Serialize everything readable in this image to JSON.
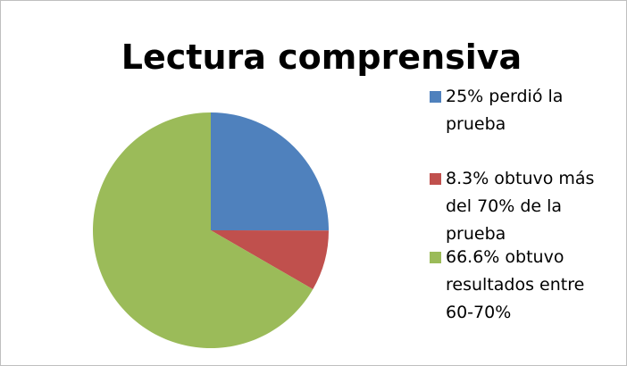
{
  "chart_data": {
    "type": "pie",
    "title": "Lectura comprensiva",
    "categories": [
      "25% perdió la prueba",
      "8.3% obtuvo más del 70% de la prueba",
      "66.6% obtuvo resultados entre 60-70%"
    ],
    "values": [
      25,
      8.3,
      66.6
    ],
    "colors": [
      "#4f81bd",
      "#c0504d",
      "#9bbb59"
    ],
    "legend": "right"
  }
}
